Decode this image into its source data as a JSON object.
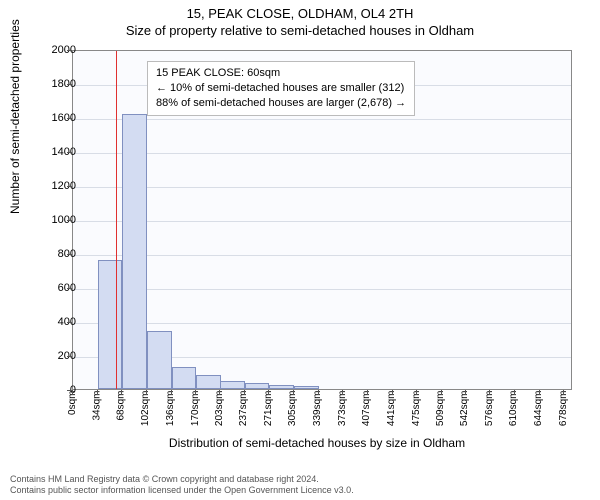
{
  "title_main": "15, PEAK CLOSE, OLDHAM, OL4 2TH",
  "title_sub": "Size of property relative to semi-detached houses in Oldham",
  "y_axis_label": "Number of semi-detached properties",
  "x_axis_label": "Distribution of semi-detached houses by size in Oldham",
  "chart": {
    "type": "histogram",
    "background_color": "#fafbfe",
    "border_color": "#888888",
    "grid_color": "#d8dde6",
    "bar_fill": "#d3dcf2",
    "bar_stroke": "#8090c0",
    "marker_color": "#e03030",
    "ylim": [
      0,
      2000
    ],
    "yticks": [
      0,
      200,
      400,
      600,
      800,
      1000,
      1200,
      1400,
      1600,
      1800,
      2000
    ],
    "xlim": [
      0,
      690
    ],
    "xticks": [
      0,
      34,
      68,
      102,
      136,
      170,
      203,
      237,
      271,
      305,
      339,
      373,
      407,
      441,
      475,
      509,
      542,
      576,
      610,
      644,
      678
    ],
    "xtick_suffix": "sqm",
    "bar_width_sqm": 34,
    "bars": [
      {
        "x_start": 34,
        "value": 760
      },
      {
        "x_start": 68,
        "value": 1620
      },
      {
        "x_start": 102,
        "value": 340
      },
      {
        "x_start": 136,
        "value": 130
      },
      {
        "x_start": 170,
        "value": 80
      },
      {
        "x_start": 203,
        "value": 50
      },
      {
        "x_start": 237,
        "value": 35
      },
      {
        "x_start": 271,
        "value": 25
      },
      {
        "x_start": 305,
        "value": 18
      }
    ],
    "marker_x": 60
  },
  "annotation": {
    "line1": "15 PEAK CLOSE: 60sqm",
    "line2": "← 10% of semi-detached houses are smaller (312)",
    "line3": "88% of semi-detached houses are larger (2,678) →",
    "box_border": "#bbbbbb",
    "box_bg": "#ffffff",
    "fontsize": 11
  },
  "footer": {
    "line1": "Contains HM Land Registry data © Crown copyright and database right 2024.",
    "line2": "Contains public sector information licensed under the Open Government Licence v3.0."
  }
}
